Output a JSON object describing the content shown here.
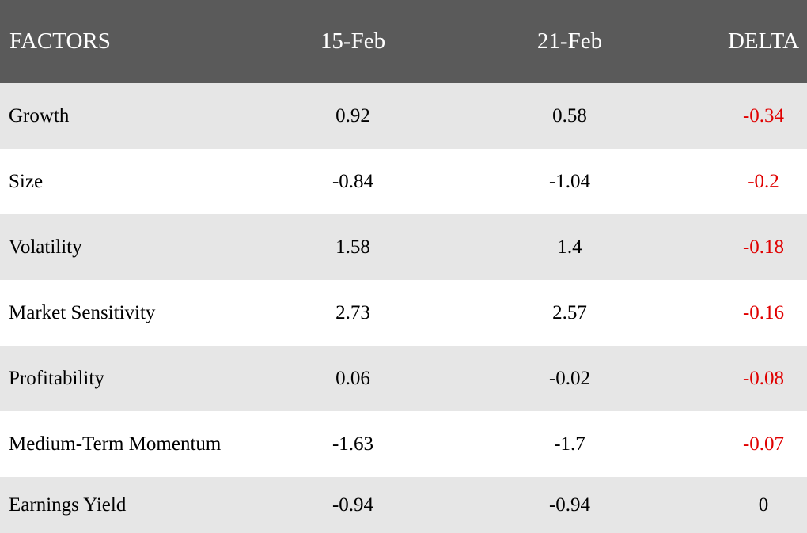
{
  "chart_data": {
    "type": "table",
    "columns": [
      "FACTORS",
      "15-Feb",
      "21-Feb",
      "DELTA"
    ],
    "rows": [
      {
        "factor": "Growth",
        "feb15": "0.92",
        "feb21": "0.58",
        "delta": "-0.34"
      },
      {
        "factor": "Size",
        "feb15": "-0.84",
        "feb21": "-1.04",
        "delta": "-0.2"
      },
      {
        "factor": "Volatility",
        "feb15": "1.58",
        "feb21": "1.4",
        "delta": "-0.18"
      },
      {
        "factor": "Market Sensitivity",
        "feb15": "2.73",
        "feb21": "2.57",
        "delta": "-0.16"
      },
      {
        "factor": "Profitability",
        "feb15": "0.06",
        "feb21": "-0.02",
        "delta": "-0.08"
      },
      {
        "factor": "Medium-Term Momentum",
        "feb15": "-1.63",
        "feb21": "-1.7",
        "delta": "-0.07"
      },
      {
        "factor": "Earnings Yield",
        "feb15": "-0.94",
        "feb21": "-0.94",
        "delta": "0"
      }
    ]
  },
  "colors": {
    "header_bg": "#5a5a5a",
    "header_text": "#ffffff",
    "row_even_bg": "#e6e6e6",
    "row_odd_bg": "#ffffff",
    "negative_delta": "#e00000",
    "neutral_text": "#000000"
  }
}
